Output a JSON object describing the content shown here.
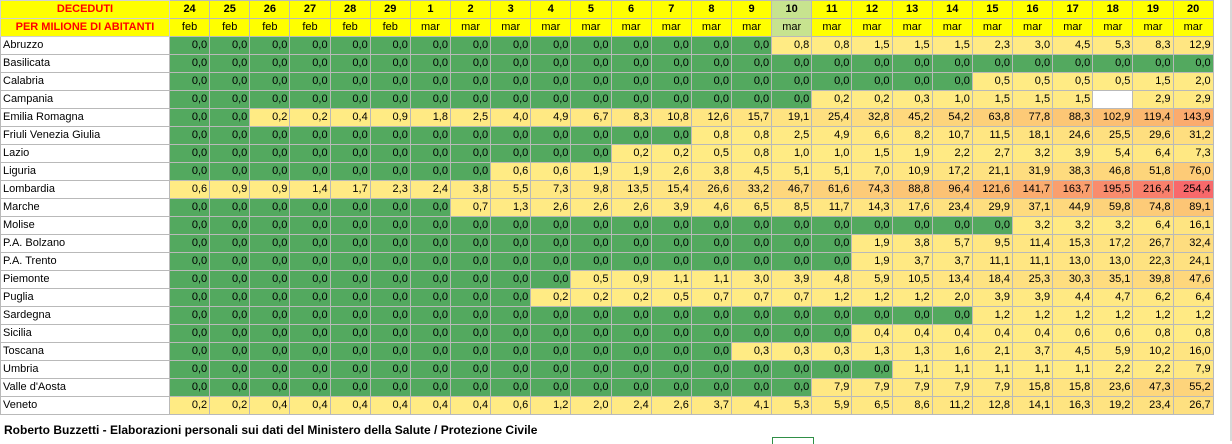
{
  "title": [
    "DECEDUTI",
    "PER MILIONE DI ABITANTI"
  ],
  "days": [
    "24",
    "25",
    "26",
    "27",
    "28",
    "29",
    "1",
    "2",
    "3",
    "4",
    "5",
    "6",
    "7",
    "8",
    "9",
    "10",
    "11",
    "12",
    "13",
    "14",
    "15",
    "16",
    "17",
    "18",
    "19",
    "20"
  ],
  "months": [
    "feb",
    "feb",
    "feb",
    "feb",
    "feb",
    "feb",
    "mar",
    "mar",
    "mar",
    "mar",
    "mar",
    "mar",
    "mar",
    "mar",
    "mar",
    "mar",
    "mar",
    "mar",
    "mar",
    "mar",
    "mar",
    "mar",
    "mar",
    "mar",
    "mar",
    "mar"
  ],
  "highlight_column_index": 15,
  "rows": [
    {
      "region": "Abruzzo",
      "values": [
        "0,0",
        "0,0",
        "0,0",
        "0,0",
        "0,0",
        "0,0",
        "0,0",
        "0,0",
        "0,0",
        "0,0",
        "0,0",
        "0,0",
        "0,0",
        "0,0",
        "0,0",
        "0,8",
        "0,8",
        "1,5",
        "1,5",
        "1,5",
        "2,3",
        "3,0",
        "4,5",
        "5,3",
        "8,3",
        "12,9"
      ]
    },
    {
      "region": "Basilicata",
      "values": [
        "0,0",
        "0,0",
        "0,0",
        "0,0",
        "0,0",
        "0,0",
        "0,0",
        "0,0",
        "0,0",
        "0,0",
        "0,0",
        "0,0",
        "0,0",
        "0,0",
        "0,0",
        "0,0",
        "0,0",
        "0,0",
        "0,0",
        "0,0",
        "0,0",
        "0,0",
        "0,0",
        "0,0",
        "0,0",
        "0,0"
      ]
    },
    {
      "region": "Calabria",
      "values": [
        "0,0",
        "0,0",
        "0,0",
        "0,0",
        "0,0",
        "0,0",
        "0,0",
        "0,0",
        "0,0",
        "0,0",
        "0,0",
        "0,0",
        "0,0",
        "0,0",
        "0,0",
        "0,0",
        "0,0",
        "0,0",
        "0,0",
        "0,0",
        "0,5",
        "0,5",
        "0,5",
        "0,5",
        "1,5",
        "2,0"
      ]
    },
    {
      "region": "Campania",
      "values": [
        "0,0",
        "0,0",
        "0,0",
        "0,0",
        "0,0",
        "0,0",
        "0,0",
        "0,0",
        "0,0",
        "0,0",
        "0,0",
        "0,0",
        "0,0",
        "0,0",
        "0,0",
        "0,0",
        "0,2",
        "0,2",
        "0,3",
        "1,0",
        "1,5",
        "1,5",
        "1,5",
        "",
        "2,9",
        "2,9"
      ]
    },
    {
      "region": "Emilia Romagna",
      "values": [
        "0,0",
        "0,0",
        "0,2",
        "0,2",
        "0,4",
        "0,9",
        "1,8",
        "2,5",
        "4,0",
        "4,9",
        "6,7",
        "8,3",
        "10,8",
        "12,6",
        "15,7",
        "19,1",
        "25,4",
        "32,8",
        "45,2",
        "54,2",
        "63,8",
        "77,8",
        "88,3",
        "102,9",
        "119,4",
        "143,9"
      ]
    },
    {
      "region": "Friuli Venezia Giulia",
      "values": [
        "0,0",
        "0,0",
        "0,0",
        "0,0",
        "0,0",
        "0,0",
        "0,0",
        "0,0",
        "0,0",
        "0,0",
        "0,0",
        "0,0",
        "0,0",
        "0,8",
        "0,8",
        "2,5",
        "4,9",
        "6,6",
        "8,2",
        "10,7",
        "11,5",
        "18,1",
        "24,6",
        "25,5",
        "29,6",
        "31,2"
      ]
    },
    {
      "region": "Lazio",
      "values": [
        "0,0",
        "0,0",
        "0,0",
        "0,0",
        "0,0",
        "0,0",
        "0,0",
        "0,0",
        "0,0",
        "0,0",
        "0,0",
        "0,2",
        "0,2",
        "0,5",
        "0,8",
        "1,0",
        "1,0",
        "1,5",
        "1,9",
        "2,2",
        "2,7",
        "3,2",
        "3,9",
        "5,4",
        "6,4",
        "7,3"
      ]
    },
    {
      "region": "Liguria",
      "values": [
        "0,0",
        "0,0",
        "0,0",
        "0,0",
        "0,0",
        "0,0",
        "0,0",
        "0,0",
        "0,6",
        "0,6",
        "1,9",
        "1,9",
        "2,6",
        "3,8",
        "4,5",
        "5,1",
        "5,1",
        "7,0",
        "10,9",
        "17,2",
        "21,1",
        "31,9",
        "38,3",
        "46,8",
        "51,8",
        "76,0"
      ]
    },
    {
      "region": "Lombardia",
      "values": [
        "0,6",
        "0,9",
        "0,9",
        "1,4",
        "1,7",
        "2,3",
        "2,4",
        "3,8",
        "5,5",
        "7,3",
        "9,8",
        "13,5",
        "15,4",
        "26,6",
        "33,2",
        "46,7",
        "61,6",
        "74,3",
        "88,8",
        "96,4",
        "121,6",
        "141,7",
        "163,7",
        "195,5",
        "216,4",
        "254,4"
      ]
    },
    {
      "region": "Marche",
      "values": [
        "0,0",
        "0,0",
        "0,0",
        "0,0",
        "0,0",
        "0,0",
        "0,0",
        "0,7",
        "1,3",
        "2,6",
        "2,6",
        "2,6",
        "3,9",
        "4,6",
        "6,5",
        "8,5",
        "11,7",
        "14,3",
        "17,6",
        "23,4",
        "29,9",
        "37,1",
        "44,9",
        "59,8",
        "74,8",
        "89,1"
      ]
    },
    {
      "region": "Molise",
      "values": [
        "0,0",
        "0,0",
        "0,0",
        "0,0",
        "0,0",
        "0,0",
        "0,0",
        "0,0",
        "0,0",
        "0,0",
        "0,0",
        "0,0",
        "0,0",
        "0,0",
        "0,0",
        "0,0",
        "0,0",
        "0,0",
        "0,0",
        "0,0",
        "0,0",
        "3,2",
        "3,2",
        "3,2",
        "6,4",
        "16,1"
      ]
    },
    {
      "region": "P.A. Bolzano",
      "values": [
        "0,0",
        "0,0",
        "0,0",
        "0,0",
        "0,0",
        "0,0",
        "0,0",
        "0,0",
        "0,0",
        "0,0",
        "0,0",
        "0,0",
        "0,0",
        "0,0",
        "0,0",
        "0,0",
        "0,0",
        "1,9",
        "3,8",
        "5,7",
        "9,5",
        "11,4",
        "15,3",
        "17,2",
        "26,7",
        "32,4"
      ]
    },
    {
      "region": "P.A. Trento",
      "values": [
        "0,0",
        "0,0",
        "0,0",
        "0,0",
        "0,0",
        "0,0",
        "0,0",
        "0,0",
        "0,0",
        "0,0",
        "0,0",
        "0,0",
        "0,0",
        "0,0",
        "0,0",
        "0,0",
        "0,0",
        "1,9",
        "3,7",
        "3,7",
        "11,1",
        "11,1",
        "13,0",
        "13,0",
        "22,3",
        "24,1"
      ]
    },
    {
      "region": "Piemonte",
      "values": [
        "0,0",
        "0,0",
        "0,0",
        "0,0",
        "0,0",
        "0,0",
        "0,0",
        "0,0",
        "0,0",
        "0,0",
        "0,5",
        "0,9",
        "1,1",
        "1,1",
        "3,0",
        "3,9",
        "4,8",
        "5,9",
        "10,5",
        "13,4",
        "18,4",
        "25,3",
        "30,3",
        "35,1",
        "39,8",
        "47,6"
      ]
    },
    {
      "region": "Puglia",
      "values": [
        "0,0",
        "0,0",
        "0,0",
        "0,0",
        "0,0",
        "0,0",
        "0,0",
        "0,0",
        "0,0",
        "0,2",
        "0,2",
        "0,2",
        "0,5",
        "0,7",
        "0,7",
        "0,7",
        "1,2",
        "1,2",
        "1,2",
        "2,0",
        "3,9",
        "3,9",
        "4,4",
        "4,7",
        "6,2",
        "6,4"
      ]
    },
    {
      "region": "Sardegna",
      "values": [
        "0,0",
        "0,0",
        "0,0",
        "0,0",
        "0,0",
        "0,0",
        "0,0",
        "0,0",
        "0,0",
        "0,0",
        "0,0",
        "0,0",
        "0,0",
        "0,0",
        "0,0",
        "0,0",
        "0,0",
        "0,0",
        "0,0",
        "0,0",
        "1,2",
        "1,2",
        "1,2",
        "1,2",
        "1,2",
        "1,2"
      ]
    },
    {
      "region": "Sicilia",
      "values": [
        "0,0",
        "0,0",
        "0,0",
        "0,0",
        "0,0",
        "0,0",
        "0,0",
        "0,0",
        "0,0",
        "0,0",
        "0,0",
        "0,0",
        "0,0",
        "0,0",
        "0,0",
        "0,0",
        "0,0",
        "0,4",
        "0,4",
        "0,4",
        "0,4",
        "0,4",
        "0,6",
        "0,6",
        "0,8",
        "0,8"
      ]
    },
    {
      "region": "Toscana",
      "values": [
        "0,0",
        "0,0",
        "0,0",
        "0,0",
        "0,0",
        "0,0",
        "0,0",
        "0,0",
        "0,0",
        "0,0",
        "0,0",
        "0,0",
        "0,0",
        "0,0",
        "0,3",
        "0,3",
        "0,3",
        "1,3",
        "1,3",
        "1,6",
        "2,1",
        "3,7",
        "4,5",
        "5,9",
        "10,2",
        "16,0"
      ]
    },
    {
      "region": "Umbria",
      "values": [
        "0,0",
        "0,0",
        "0,0",
        "0,0",
        "0,0",
        "0,0",
        "0,0",
        "0,0",
        "0,0",
        "0,0",
        "0,0",
        "0,0",
        "0,0",
        "0,0",
        "0,0",
        "0,0",
        "0,0",
        "0,0",
        "1,1",
        "1,1",
        "1,1",
        "1,1",
        "1,1",
        "2,2",
        "2,2",
        "7,9"
      ]
    },
    {
      "region": "Valle d'Aosta",
      "values": [
        "0,0",
        "0,0",
        "0,0",
        "0,0",
        "0,0",
        "0,0",
        "0,0",
        "0,0",
        "0,0",
        "0,0",
        "0,0",
        "0,0",
        "0,0",
        "0,0",
        "0,0",
        "0,0",
        "7,9",
        "7,9",
        "7,9",
        "7,9",
        "7,9",
        "15,8",
        "15,8",
        "23,6",
        "47,3",
        "55,2"
      ]
    },
    {
      "region": "Veneto",
      "values": [
        "0,2",
        "0,2",
        "0,4",
        "0,4",
        "0,4",
        "0,4",
        "0,4",
        "0,4",
        "0,6",
        "1,2",
        "2,0",
        "2,4",
        "2,6",
        "3,7",
        "4,1",
        "5,3",
        "5,9",
        "6,5",
        "8,6",
        "11,2",
        "12,8",
        "14,1",
        "16,3",
        "19,2",
        "23,4",
        "26,7"
      ]
    }
  ],
  "footer": "Roberto Buzzetti - Elaborazioni personali sui dati del Ministero della Salute / Protezione Civile",
  "colors": {
    "zero": "#53a95f",
    "low": "#ffeb84",
    "mid": "#fbb56f",
    "high": "#f8696b",
    "header": "#ffff00",
    "title_text": "#ff0000",
    "highlight_header": "#c7e38f"
  }
}
